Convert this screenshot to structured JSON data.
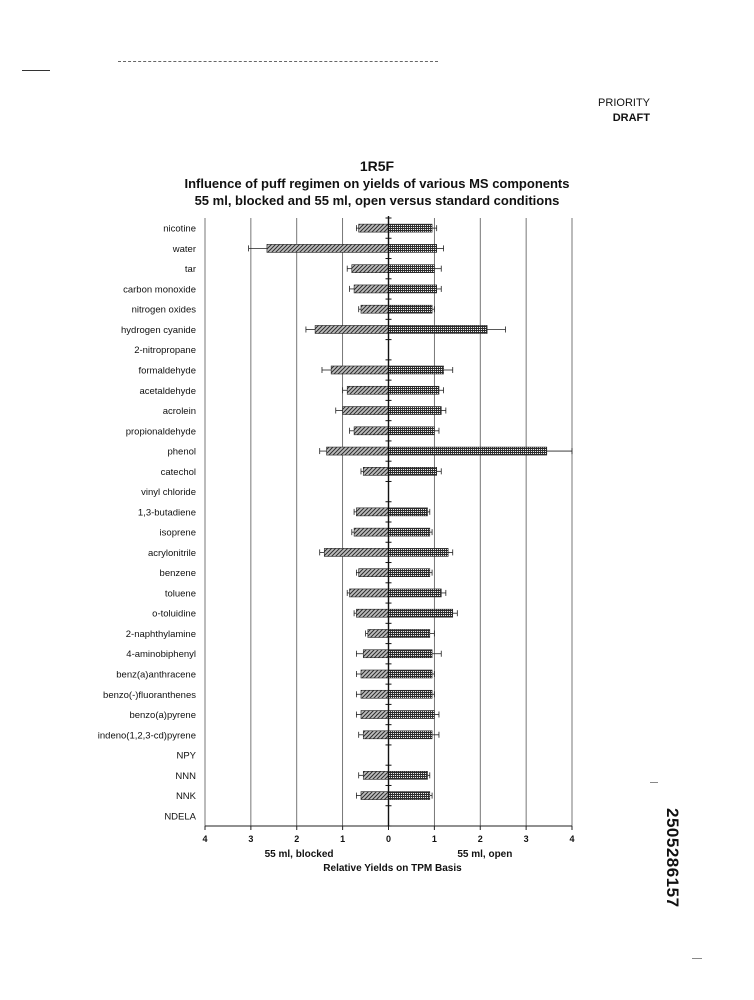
{
  "header": {
    "priority": "PRIORITY",
    "draft": "DRAFT"
  },
  "document_number": "2505286157",
  "chart_data": {
    "type": "bar",
    "orientation": "horizontal-diverging",
    "title": "1R5F",
    "subtitle_1": "Influence of puff regimen on yields of various MS components",
    "subtitle_2": "55 ml, blocked and 55 ml, open versus standard conditions",
    "left_label": "55 ml, blocked",
    "right_label": "55 ml, open",
    "xlabel": "Relative Yields on TPM Basis",
    "xlim": [
      -4,
      4
    ],
    "x_ticks": [
      -4,
      -3,
      -2,
      -1,
      0,
      1,
      2,
      3,
      4
    ],
    "x_tick_labels": [
      "4",
      "3",
      "2",
      "1",
      "0",
      "1",
      "2",
      "3",
      "4"
    ],
    "grid": true,
    "categories": [
      "nicotine",
      "water",
      "tar",
      "carbon monoxide",
      "nitrogen oxides",
      "hydrogen cyanide",
      "2-nitropropane",
      "formaldehyde",
      "acetaldehyde",
      "acrolein",
      "propionaldehyde",
      "phenol",
      "catechol",
      "vinyl chloride",
      "1,3-butadiene",
      "isoprene",
      "acrylonitrile",
      "benzene",
      "toluene",
      "o-toluidine",
      "2-naphthylamine",
      "4-aminobiphenyl",
      "benz(a)anthracene",
      "benzo(-)fluoranthenes",
      "benzo(a)pyrene",
      "indeno(1,2,3-cd)pyrene",
      "NPY",
      "NNN",
      "NNK",
      "NDELA"
    ],
    "series": [
      {
        "values": [
          0.65,
          2.65,
          0.8,
          0.75,
          0.6,
          1.6,
          null,
          1.25,
          0.9,
          1.0,
          0.75,
          1.35,
          0.55,
          null,
          0.7,
          0.75,
          1.4,
          0.65,
          0.85,
          0.7,
          0.45,
          0.55,
          0.6,
          0.6,
          0.6,
          0.55,
          null,
          0.55,
          0.6,
          null
        ],
        "errors": [
          0.05,
          0.4,
          0.1,
          0.1,
          0.05,
          0.2,
          null,
          0.2,
          0.1,
          0.15,
          0.1,
          0.15,
          0.05,
          null,
          0.05,
          0.05,
          0.1,
          0.05,
          0.05,
          0.05,
          0.05,
          0.15,
          0.1,
          0.1,
          0.1,
          0.1,
          null,
          0.1,
          0.1,
          null
        ]
      },
      {
        "values": [
          0.95,
          1.05,
          1.0,
          1.05,
          0.95,
          2.15,
          null,
          1.2,
          1.1,
          1.15,
          1.0,
          3.45,
          1.05,
          null,
          0.85,
          0.9,
          1.3,
          0.9,
          1.15,
          1.4,
          0.9,
          0.95,
          0.95,
          0.95,
          1.0,
          0.95,
          null,
          0.85,
          0.9,
          null
        ],
        "errors": [
          0.1,
          0.15,
          0.15,
          0.1,
          0.05,
          0.4,
          null,
          0.2,
          0.1,
          0.1,
          0.1,
          0.55,
          0.1,
          null,
          0.05,
          0.05,
          0.1,
          0.05,
          0.1,
          0.1,
          0.1,
          0.2,
          0.05,
          0.05,
          0.1,
          0.15,
          null,
          0.05,
          0.05,
          null
        ]
      }
    ]
  }
}
